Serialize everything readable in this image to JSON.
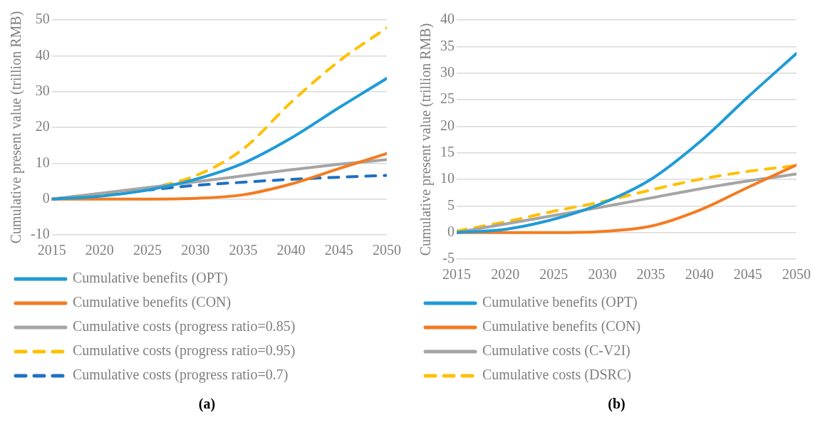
{
  "chart_data": [
    {
      "type": "line",
      "ylabel": "Cumulative present value (trillion RMB)",
      "x": [
        2015,
        2020,
        2025,
        2030,
        2035,
        2040,
        2045,
        2050
      ],
      "xlim": [
        2015,
        2050
      ],
      "xticks": [
        2015,
        2020,
        2025,
        2030,
        2035,
        2040,
        2045,
        2050
      ],
      "ylim": [
        -10,
        50
      ],
      "yticks": [
        -10,
        0,
        10,
        20,
        30,
        40,
        50
      ],
      "grid": "y",
      "legend": "bottom",
      "annotations": [
        "(a)"
      ],
      "series": [
        {
          "name": "Cumulative benefits (OPT)",
          "color": "#1f9bd7",
          "line_style": "solid",
          "values": [
            0,
            0.8,
            2.5,
            5.5,
            10,
            17,
            25.5,
            33.7
          ]
        },
        {
          "name": "Cumulative benefits (CON)",
          "color": "#f47b20",
          "line_style": "solid",
          "values": [
            0,
            0,
            0,
            0.2,
            1.2,
            4.2,
            8.5,
            12.7
          ]
        },
        {
          "name": "Cumulative costs (progress ratio=0.85)",
          "color": "#a5a5a5",
          "line_style": "solid",
          "values": [
            0,
            1.6,
            3.2,
            4.8,
            6.5,
            8.2,
            9.7,
            11
          ]
        },
        {
          "name": "Cumulative costs (progress ratio=0.95)",
          "color": "#ffc000",
          "line_style": "dashed",
          "values": [
            0,
            1.5,
            3,
            6.5,
            14,
            27,
            38.5,
            47.8
          ]
        },
        {
          "name": "Cumulative costs (progress ratio=0.7)",
          "color": "#1f70c1",
          "line_style": "dashed",
          "values": [
            0,
            1.2,
            2.5,
            3.8,
            4.7,
            5.5,
            6.1,
            6.6
          ]
        }
      ]
    },
    {
      "type": "line",
      "ylabel": "Cumulative present value (trillion RMB)",
      "x": [
        2015,
        2020,
        2025,
        2030,
        2035,
        2040,
        2045,
        2050
      ],
      "xlim": [
        2015,
        2050
      ],
      "xticks": [
        2015,
        2020,
        2025,
        2030,
        2035,
        2040,
        2045,
        2050
      ],
      "ylim": [
        -5,
        40
      ],
      "yticks": [
        -5,
        0,
        5,
        10,
        15,
        20,
        25,
        30,
        35,
        40
      ],
      "grid": "y",
      "legend": "bottom",
      "annotations": [
        "(b)"
      ],
      "series": [
        {
          "name": "Cumulative benefits (OPT)",
          "color": "#1f9bd7",
          "line_style": "solid",
          "values": [
            0,
            0.6,
            2.5,
            5.5,
            10,
            17,
            25.5,
            33.7
          ]
        },
        {
          "name": "Cumulative benefits (CON)",
          "color": "#f47b20",
          "line_style": "solid",
          "values": [
            0,
            0,
            0,
            0.2,
            1.2,
            4.2,
            8.5,
            12.7
          ]
        },
        {
          "name": "Cumulative costs (C-V2I)",
          "color": "#a5a5a5",
          "line_style": "solid",
          "values": [
            0,
            1.6,
            3.2,
            4.8,
            6.5,
            8.2,
            9.7,
            11
          ]
        },
        {
          "name": "Cumulative costs (DSRC)",
          "color": "#ffc000",
          "line_style": "dashed",
          "values": [
            0.3,
            2,
            4,
            5.8,
            8,
            10,
            11.5,
            12.6
          ]
        }
      ]
    }
  ]
}
